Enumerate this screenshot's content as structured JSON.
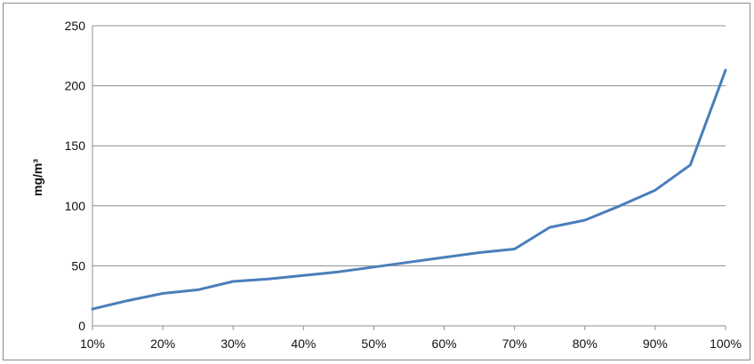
{
  "chart_data": {
    "type": "line",
    "title": "",
    "xlabel": "",
    "ylabel": "mg/m³",
    "ylim": [
      0,
      250
    ],
    "xlim": [
      10,
      100
    ],
    "grid": true,
    "y_ticks": [
      "0",
      "50",
      "100",
      "150",
      "200",
      "250"
    ],
    "x_ticks": [
      "10%",
      "20%",
      "30%",
      "40%",
      "50%",
      "60%",
      "70%",
      "80%",
      "90%",
      "100%"
    ],
    "series": [
      {
        "color": "#4a7ebb",
        "x": [
          10,
          15,
          20,
          25,
          30,
          35,
          40,
          45,
          50,
          55,
          60,
          65,
          70,
          75,
          80,
          85,
          90,
          95,
          100
        ],
        "values": [
          14,
          21,
          27,
          30,
          37,
          39,
          42,
          45,
          49,
          53,
          57,
          61,
          64,
          82,
          88,
          100,
          113,
          134,
          213
        ]
      }
    ]
  }
}
